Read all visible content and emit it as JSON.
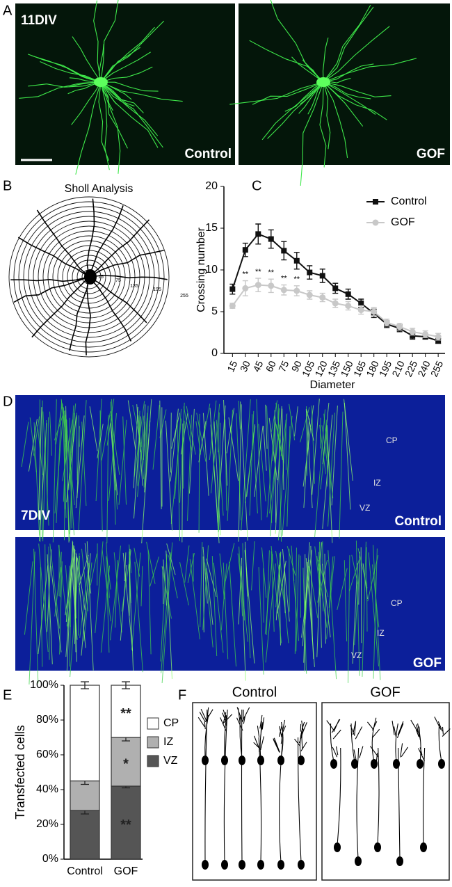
{
  "panels": {
    "A": {
      "letter": "A",
      "stage": "11DIV",
      "left_label": "Control",
      "right_label": "GOF"
    },
    "B": {
      "letter": "B",
      "title": "Sholl Analysis",
      "radius_labels": [
        "15",
        "75",
        "135",
        "195",
        "255"
      ]
    },
    "C": {
      "letter": "C"
    },
    "D": {
      "letter": "D",
      "stage": "7DIV",
      "top_zones": [
        "CP",
        "IZ",
        "VZ"
      ],
      "top_label": "Control",
      "bottom_zones": [
        "CP",
        "IZ",
        "VZ"
      ],
      "bottom_label": "GOF"
    },
    "E": {
      "letter": "E"
    },
    "F": {
      "letter": "F",
      "left_title": "Control",
      "right_title": "GOF"
    }
  },
  "chart_data": [
    {
      "type": "line",
      "ylabel": "Crossing number",
      "xlabel": "Diameter",
      "x": [
        15,
        30,
        45,
        60,
        75,
        90,
        105,
        120,
        135,
        150,
        165,
        180,
        195,
        210,
        225,
        240,
        255
      ],
      "xlim": [
        5,
        263
      ],
      "xticks": [
        15,
        30,
        45,
        60,
        75,
        90,
        105,
        120,
        135,
        150,
        165,
        180,
        195,
        210,
        225,
        240,
        255
      ],
      "ylim": [
        0,
        20
      ],
      "yticks": [
        0,
        5,
        10,
        15,
        20
      ],
      "series": [
        {
          "name": "Control",
          "color": "#111111",
          "values": [
            7.7,
            12.4,
            14.3,
            13.7,
            12.3,
            11.1,
            9.7,
            9.3,
            7.8,
            7.1,
            6.0,
            4.8,
            3.5,
            3.0,
            2.1,
            2.0,
            1.5
          ],
          "errors": [
            0.6,
            0.8,
            1.2,
            1.1,
            1.1,
            1.0,
            0.8,
            0.8,
            0.6,
            0.6,
            0.5,
            0.5,
            0.4,
            0.4,
            0.4,
            0.3,
            0.3
          ]
        },
        {
          "name": "GOF",
          "color": "#c8c8c8",
          "values": [
            5.7,
            7.8,
            8.2,
            8.1,
            7.6,
            7.5,
            7.0,
            6.7,
            6.0,
            5.7,
            5.2,
            5.0,
            3.7,
            3.2,
            2.6,
            2.3,
            2.0
          ],
          "errors": [
            0.3,
            0.9,
            0.8,
            0.8,
            0.6,
            0.6,
            0.5,
            0.5,
            0.5,
            0.5,
            0.5,
            0.5,
            0.4,
            0.4,
            0.4,
            0.4,
            0.4
          ],
          "annotations": [
            null,
            "**",
            "**",
            "**",
            "**",
            "**",
            null,
            null,
            null,
            null,
            null,
            null,
            null,
            null,
            null,
            null,
            null
          ]
        }
      ]
    },
    {
      "type": "stacked_bar",
      "ylabel": "Transfected cells",
      "categories": [
        "Control",
        "GOF"
      ],
      "ylim": [
        0,
        100
      ],
      "yticks": [
        {
          "value": 0,
          "label": "0%"
        },
        {
          "value": 20,
          "label": "20%"
        },
        {
          "value": 40,
          "label": "40%"
        },
        {
          "value": 60,
          "label": "60%"
        },
        {
          "value": 80,
          "label": "80%"
        },
        {
          "value": 100,
          "label": "100%"
        }
      ],
      "series": [
        {
          "name": "VZ",
          "color": "#555555",
          "values": [
            28,
            42
          ],
          "errors": [
            2,
            1
          ],
          "annotations": [
            null,
            "**"
          ]
        },
        {
          "name": "IZ",
          "color": "#b0b0b0",
          "values": [
            17,
            28
          ],
          "errors": [
            2,
            2
          ],
          "annotations": [
            null,
            "*"
          ]
        },
        {
          "name": "CP",
          "color": "#ffffff",
          "values": [
            55,
            30
          ],
          "errors": [
            2,
            2
          ],
          "annotations": [
            null,
            "**"
          ]
        }
      ]
    }
  ]
}
